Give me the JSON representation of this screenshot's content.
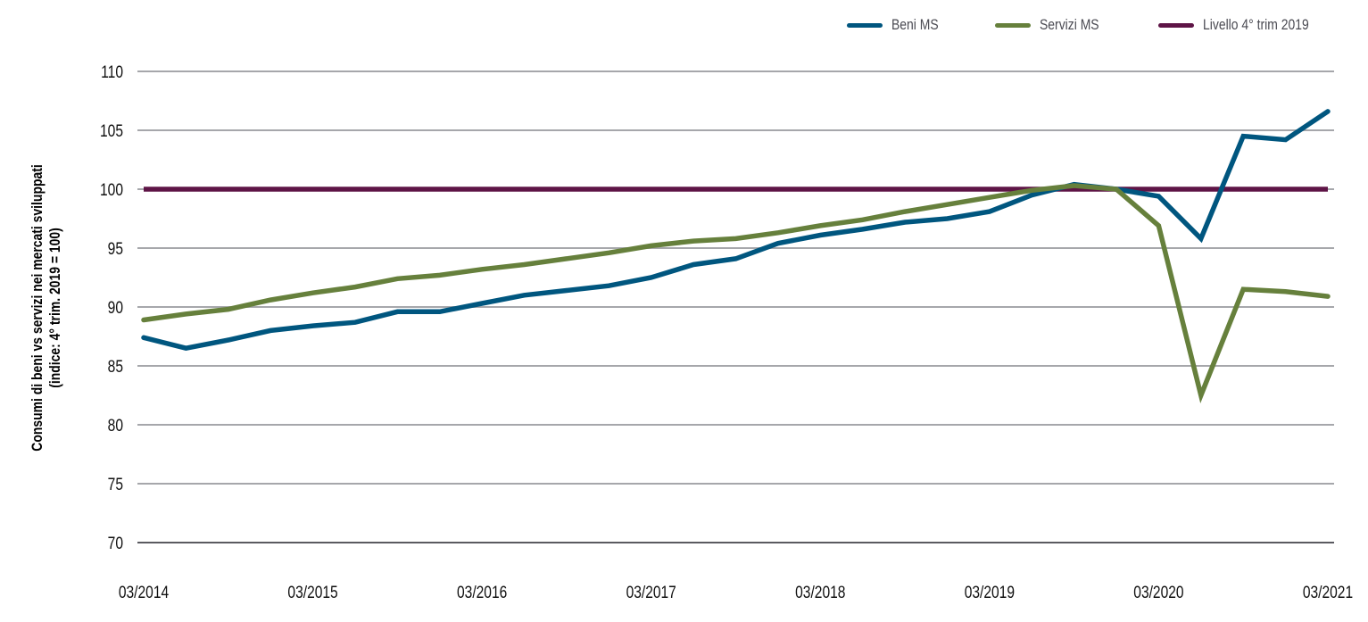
{
  "chart_data": {
    "type": "line",
    "title": "",
    "xlabel": "",
    "ylabel": "Consumi di beni vs servizi nei mercati sviluppati (indice: 4° trim. 2019 = 100)",
    "ylabel_lines": [
      "Consumi di beni vs servizi nei mercati sviluppati",
      "(indice: 4° trim. 2019 = 100)"
    ],
    "ylim": [
      70,
      110
    ],
    "yticks": [
      70,
      75,
      80,
      85,
      90,
      95,
      100,
      105,
      110
    ],
    "grid": true,
    "legend_position": "top-right",
    "x": [
      "03/2014",
      "06/2014",
      "09/2014",
      "12/2014",
      "03/2015",
      "06/2015",
      "09/2015",
      "12/2015",
      "03/2016",
      "06/2016",
      "09/2016",
      "12/2016",
      "03/2017",
      "06/2017",
      "09/2017",
      "12/2017",
      "03/2018",
      "06/2018",
      "09/2018",
      "12/2018",
      "03/2019",
      "06/2019",
      "09/2019",
      "12/2019",
      "03/2020",
      "06/2020",
      "09/2020",
      "12/2020",
      "03/2021"
    ],
    "xtick_labels": [
      "03/2014",
      "03/2015",
      "03/2016",
      "03/2017",
      "03/2018",
      "03/2019",
      "03/2020",
      "03/2021"
    ],
    "series": [
      {
        "name": "Beni MS",
        "color": "#00567f",
        "values": [
          87.4,
          86.5,
          87.2,
          88.0,
          88.4,
          88.7,
          89.6,
          89.6,
          90.3,
          91.0,
          91.4,
          91.8,
          92.5,
          93.6,
          94.1,
          95.4,
          96.1,
          96.6,
          97.2,
          97.5,
          98.1,
          99.5,
          100.4,
          100.0,
          99.4,
          95.8,
          104.5,
          104.2,
          106.6
        ]
      },
      {
        "name": "Servizi MS",
        "color": "#66803c",
        "values": [
          88.9,
          89.4,
          89.8,
          90.6,
          91.2,
          91.7,
          92.4,
          92.7,
          93.2,
          93.6,
          94.1,
          94.6,
          95.2,
          95.6,
          95.8,
          96.3,
          96.9,
          97.4,
          98.1,
          98.7,
          99.3,
          99.9,
          100.3,
          100.0,
          96.9,
          82.5,
          91.5,
          91.3,
          90.9
        ]
      },
      {
        "name": "Livello 4° trim 2019",
        "color": "#5e1446",
        "values": [
          100,
          100,
          100,
          100,
          100,
          100,
          100,
          100,
          100,
          100,
          100,
          100,
          100,
          100,
          100,
          100,
          100,
          100,
          100,
          100,
          100,
          100,
          100,
          100,
          100,
          100,
          100,
          100,
          100
        ]
      }
    ]
  },
  "legend": [
    {
      "label": "Beni MS",
      "color": "#00567f"
    },
    {
      "label": "Servizi MS",
      "color": "#66803c"
    },
    {
      "label": "Livello 4° trim 2019",
      "color": "#5e1446"
    }
  ],
  "colors": {
    "grid": "#a6a7ab",
    "axis": "#5a5a60",
    "tick_text": "#111111"
  }
}
